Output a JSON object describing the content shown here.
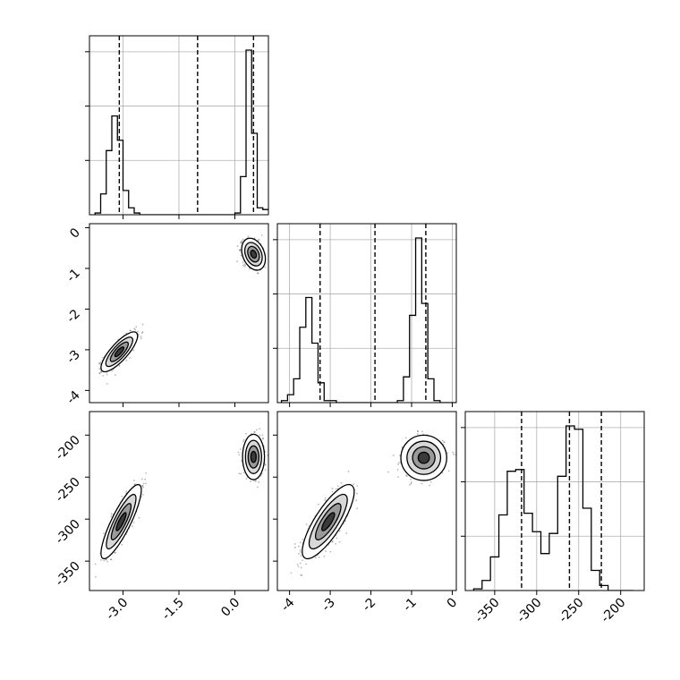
{
  "chart_data": {
    "type": "corner",
    "grid": true,
    "parameters": [
      {
        "range": [
          -3.9,
          0.9
        ],
        "ticks": [
          "-3.0",
          "-1.5",
          "0.0"
        ],
        "tick_values": [
          -3.0,
          -1.5,
          0.0
        ],
        "quantiles": [
          -3.1,
          -1.0,
          0.5
        ],
        "hist": {
          "edges": [
            -3.75,
            -3.6,
            -3.45,
            -3.3,
            -3.15,
            -3.0,
            -2.85,
            -2.7,
            -2.55,
            -2.4,
            -2.25,
            -2.1,
            -1.95,
            -1.8,
            -1.65,
            -1.5,
            -1.35,
            -1.2,
            -1.05,
            -0.9,
            -0.75,
            -0.6,
            -0.45,
            -0.3,
            -0.15,
            0.0,
            0.15,
            0.3,
            0.45,
            0.6,
            0.75,
            0.9
          ],
          "counts": [
            0.01,
            0.12,
            0.37,
            0.57,
            0.43,
            0.14,
            0.04,
            0.01,
            0,
            0,
            0,
            0,
            0,
            0,
            0,
            0,
            0,
            0,
            0,
            0,
            0,
            0,
            0,
            0,
            0,
            0.01,
            0.22,
            0.95,
            0.47,
            0.04,
            0.03
          ]
        }
      },
      {
        "range": [
          -4.3,
          0.1
        ],
        "ticks": [
          "-4",
          "-3",
          "-2",
          "-1",
          "0"
        ],
        "tick_values": [
          -4,
          -3,
          -2,
          -1,
          0
        ],
        "quantiles": [
          -3.25,
          -1.9,
          -0.65
        ],
        "hist": {
          "edges": [
            -4.2,
            -4.05,
            -3.9,
            -3.75,
            -3.6,
            -3.45,
            -3.3,
            -3.15,
            -3.0,
            -2.85,
            -2.7,
            -2.55,
            -2.4,
            -2.25,
            -2.1,
            -1.95,
            -1.8,
            -1.65,
            -1.5,
            -1.35,
            -1.2,
            -1.05,
            -0.9,
            -0.75,
            -0.6,
            -0.45,
            -0.3,
            -0.15,
            0.0
          ],
          "counts": [
            0.01,
            0.04,
            0.12,
            0.38,
            0.53,
            0.3,
            0.1,
            0.01,
            0.01,
            0,
            0,
            0,
            0,
            0,
            0,
            0,
            0,
            0,
            0,
            0.01,
            0.13,
            0.44,
            0.83,
            0.5,
            0.12,
            0.01,
            0,
            0,
            0
          ]
        }
      },
      {
        "range": [
          -385,
          -172
        ],
        "ticks": [
          "-350",
          "-300",
          "-250",
          "-200"
        ],
        "tick_values": [
          -350,
          -300,
          -250,
          -200
        ],
        "quantiles": [
          -318,
          -261,
          -223
        ],
        "hist": {
          "edges": [
            -375,
            -365,
            -355,
            -345,
            -335,
            -325,
            -315,
            -305,
            -295,
            -285,
            -275,
            -265,
            -255,
            -245,
            -235,
            -225,
            -215,
            -205,
            -195,
            -185
          ],
          "counts": [
            0.01,
            0.06,
            0.2,
            0.45,
            0.71,
            0.72,
            0.46,
            0.35,
            0.22,
            0.34,
            0.68,
            0.98,
            0.96,
            0.49,
            0.12,
            0.03,
            0,
            0,
            0
          ]
        }
      }
    ],
    "scatter_panels": [
      {
        "row": 1,
        "col": 0,
        "modes": [
          {
            "mx": -3.1,
            "my": -3.05,
            "sx": 0.2,
            "sy": 0.2,
            "rho": 0.8,
            "n": 700
          },
          {
            "mx": 0.5,
            "my": -0.65,
            "sx": 0.13,
            "sy": 0.16,
            "rho": -0.3,
            "n": 700
          }
        ]
      },
      {
        "row": 2,
        "col": 0,
        "modes": [
          {
            "mx": -3.05,
            "my": -303,
            "sx": 0.22,
            "sy": 18,
            "rho": 0.85,
            "n": 700
          },
          {
            "mx": 0.5,
            "my": -226,
            "sx": 0.12,
            "sy": 11,
            "rho": 0.0,
            "n": 700
          }
        ]
      },
      {
        "row": 2,
        "col": 1,
        "modes": [
          {
            "mx": -3.05,
            "my": -303,
            "sx": 0.26,
            "sy": 18,
            "rho": 0.8,
            "n": 700
          },
          {
            "mx": -0.7,
            "my": -227,
            "sx": 0.23,
            "sy": 11,
            "rho": 0.0,
            "n": 700
          }
        ]
      }
    ]
  }
}
